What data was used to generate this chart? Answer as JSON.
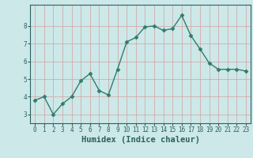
{
  "x": [
    0,
    1,
    2,
    3,
    4,
    5,
    6,
    7,
    8,
    9,
    10,
    11,
    12,
    13,
    14,
    15,
    16,
    17,
    18,
    19,
    20,
    21,
    22,
    23
  ],
  "y": [
    3.8,
    4.0,
    3.0,
    3.6,
    4.0,
    4.9,
    5.3,
    4.35,
    4.1,
    5.55,
    7.1,
    7.35,
    7.95,
    8.0,
    7.75,
    7.85,
    8.6,
    7.45,
    6.7,
    5.9,
    5.55,
    5.55,
    5.55,
    5.45
  ],
  "xlabel": "Humidex (Indice chaleur)",
  "line_color": "#2e7d6e",
  "marker": "D",
  "marker_size": 2.5,
  "bg_color": "#cce8e8",
  "grid_color_h": "#c8b0b0",
  "grid_color_v": "#c8b0b0",
  "ylim": [
    2.5,
    9.2
  ],
  "xlim": [
    -0.5,
    23.5
  ],
  "yticks": [
    3,
    4,
    5,
    6,
    7,
    8
  ],
  "xticks": [
    0,
    1,
    2,
    3,
    4,
    5,
    6,
    7,
    8,
    9,
    10,
    11,
    12,
    13,
    14,
    15,
    16,
    17,
    18,
    19,
    20,
    21,
    22,
    23
  ],
  "tick_label_fontsize": 5.5,
  "xlabel_fontsize": 7.5,
  "linewidth": 1.0
}
